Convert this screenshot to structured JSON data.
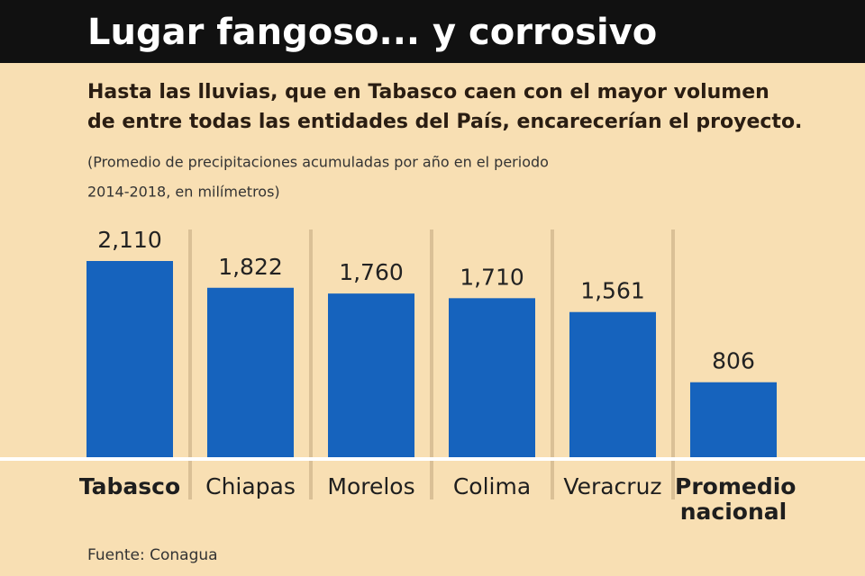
{
  "chart_data": {
    "type": "bar",
    "title": "Lugar fangoso... y corrosivo",
    "subtitle": [
      "Hasta las lluvias, que en Tabasco caen con el mayor volumen",
      "de entre todas las entidades del País, encarecerían el proyecto."
    ],
    "note": [
      "(Promedio de precipitaciones acumuladas por año en el periodo",
      "2014-2018, en milímetros)"
    ],
    "categories": [
      "Tabasco",
      "Chiapas",
      "Morelos",
      "Colima",
      "Veracruz",
      "Promedio nacional"
    ],
    "values": [
      2110,
      1822,
      1760,
      1710,
      1561,
      806
    ],
    "value_labels": [
      "2,110",
      "1,822",
      "1,760",
      "1,710",
      "1,561",
      "806"
    ],
    "color": "#1663bd",
    "bold_categories": [
      0,
      5
    ],
    "source": "Fuente: Conagua"
  }
}
